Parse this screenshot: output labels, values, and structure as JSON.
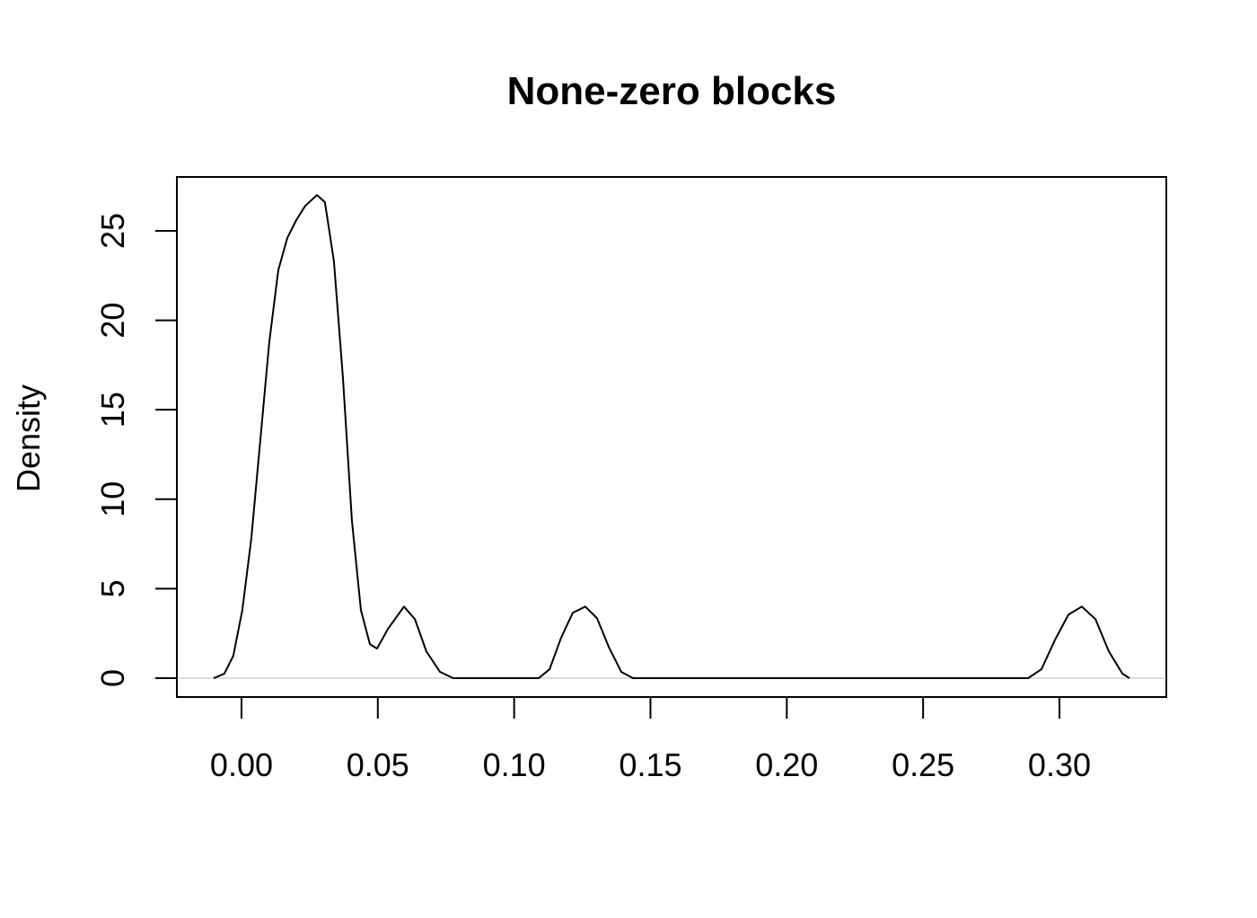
{
  "chart_data": {
    "type": "line",
    "title": "None-zero blocks",
    "y_label": "Density",
    "x": [
      -0.0102,
      -0.0063,
      -0.003,
      0.0003,
      0.0036,
      0.0069,
      0.0102,
      0.0135,
      0.0168,
      0.0201,
      0.0234,
      0.0277,
      0.0306,
      0.0339,
      0.0372,
      0.0405,
      0.0438,
      0.0471,
      0.0497,
      0.0537,
      0.0596,
      0.0636,
      0.0678,
      0.0728,
      0.0777,
      0.109,
      0.113,
      0.1172,
      0.1215,
      0.1261,
      0.1304,
      0.1347,
      0.1393,
      0.1436,
      0.2885,
      0.2934,
      0.2984,
      0.3033,
      0.3082,
      0.3132,
      0.3181,
      0.3231,
      0.3257
    ],
    "series": [
      {
        "color": "#000000",
        "values": [
          0,
          0.25,
          1.25,
          3.8,
          7.8,
          13.3,
          18.8,
          22.8,
          24.6,
          25.6,
          26.4,
          27.0,
          26.6,
          23.3,
          16.8,
          8.8,
          3.8,
          1.9,
          1.65,
          2.75,
          4.0,
          3.3,
          1.5,
          0.35,
          0,
          0,
          0.5,
          2.25,
          3.65,
          4.0,
          3.35,
          1.75,
          0.35,
          0,
          0,
          0.5,
          2.15,
          3.55,
          4.0,
          3.3,
          1.5,
          0.25,
          0
        ]
      }
    ],
    "xlim": [
      -0.0237,
      0.3392
    ],
    "ylim": [
      -1.054,
      28.01
    ],
    "xticks": [
      {
        "value": 0,
        "label": "0.00"
      },
      0.05,
      {
        "value": 0.1,
        "label": "0.10"
      },
      0.15,
      {
        "value": 0.2,
        "label": "0.20"
      },
      0.25,
      {
        "value": 0.3,
        "label": "0.30"
      }
    ],
    "yticks": [
      0,
      5,
      10,
      15,
      20,
      25
    ]
  }
}
